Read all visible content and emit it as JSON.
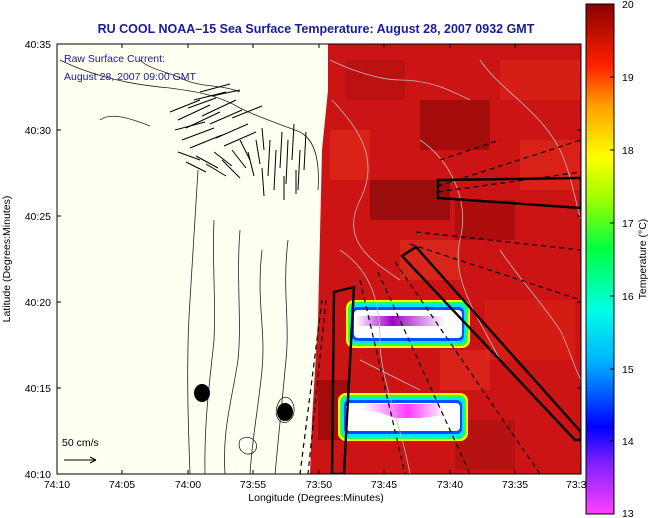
{
  "title": "RU COOL  NOAA–15  Sea Surface Temperature:  August 28, 2007 0932 GMT",
  "overlay": {
    "line1": "Raw Surface Current:",
    "line2": "August 28, 2007 09:00 GMT"
  },
  "scale_label": "50 cm/s",
  "axes": {
    "xlabel": "Longitude (Degrees:Minutes)",
    "ylabel": "Latitude (Degrees:Minutes)",
    "xticks": [
      "74:10",
      "74:05",
      "74:00",
      "73:55",
      "73:50",
      "73:45",
      "73:40",
      "73:35",
      "73:3"
    ],
    "yticks": [
      "40:35",
      "40:30",
      "40:25",
      "40:20",
      "40:15",
      "40:10"
    ]
  },
  "colorbar": {
    "label": "Temperature (°C)",
    "ticks": [
      "20",
      "19",
      "18",
      "17",
      "16",
      "15",
      "14",
      "13"
    ],
    "min": 13,
    "max": 20
  },
  "colors": {
    "title": "#1a1a9c",
    "sst_warm": "#c81010",
    "sst_hot": "#8a0a0a",
    "land": "#fffff2"
  }
}
